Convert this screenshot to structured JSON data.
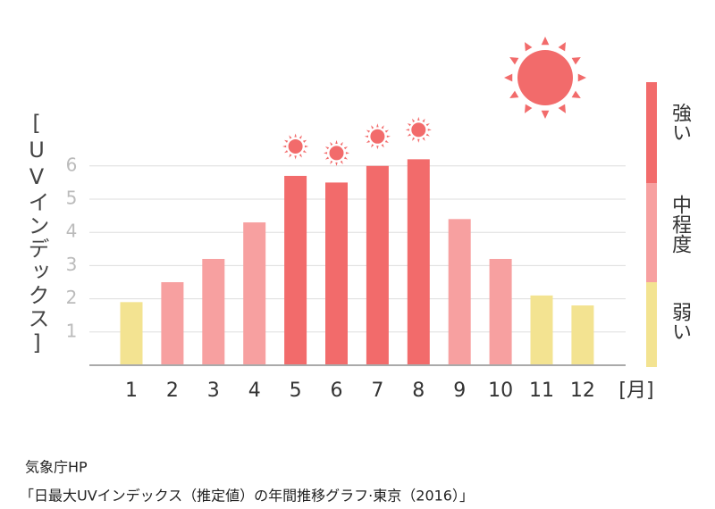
{
  "chart_data": {
    "type": "bar",
    "y_label": "[UVインデックス]",
    "x_label": "[月]",
    "categories": [
      "1",
      "2",
      "3",
      "4",
      "5",
      "6",
      "7",
      "8",
      "9",
      "10",
      "11",
      "12"
    ],
    "values": [
      1.9,
      2.5,
      3.2,
      4.3,
      5.7,
      5.5,
      6.0,
      6.2,
      4.4,
      3.2,
      2.1,
      1.8
    ],
    "colors": [
      "#f3e391",
      "#f7a0a0",
      "#f7a0a0",
      "#f7a0a0",
      "#f26b6b",
      "#f26b6b",
      "#f26b6b",
      "#f26b6b",
      "#f7a0a0",
      "#f7a0a0",
      "#f3e391",
      "#f3e391"
    ],
    "ylim": [
      0,
      6.5
    ],
    "yticks": [
      1,
      2,
      3,
      4,
      5,
      6
    ],
    "grid": true,
    "legend": [
      {
        "name": "強い",
        "color": "#f26b6b"
      },
      {
        "name": "中程度",
        "color": "#f7a0a0"
      },
      {
        "name": "弱い",
        "color": "#f3e391"
      }
    ],
    "source": "気象庁HP",
    "caption": "「日最大UVインデックス（推定値）の年間推移グラフ·東京（2016）」"
  }
}
